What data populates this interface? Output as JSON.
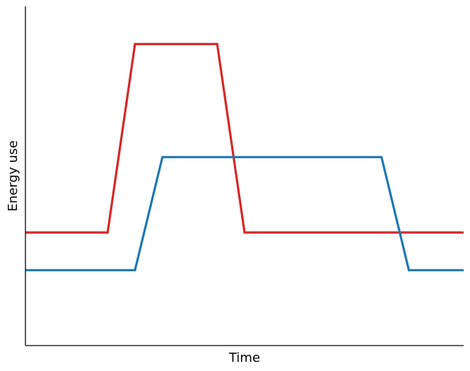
{
  "chart_data": {
    "type": "line",
    "xlabel": "Time",
    "ylabel": "Energy use",
    "xlim": [
      0,
      16
    ],
    "ylim": [
      0,
      9
    ],
    "grid": false,
    "legend": "none",
    "series": [
      {
        "color": "#d62728",
        "x": [
          0,
          3,
          4,
          7,
          8,
          16
        ],
        "y": [
          3,
          3,
          8,
          8,
          3,
          3
        ]
      },
      {
        "color": "#1f77b4",
        "x": [
          0,
          4,
          5,
          13,
          14,
          16
        ],
        "y": [
          2,
          2,
          5,
          5,
          2,
          2
        ]
      }
    ]
  }
}
